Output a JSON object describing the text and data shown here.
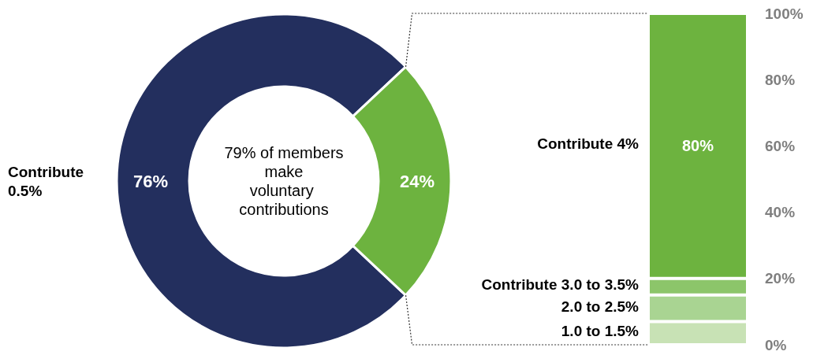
{
  "chart_data": [
    {
      "type": "donut",
      "categories": [
        "Contribute 0.5%",
        null
      ],
      "values": [
        76,
        24
      ],
      "colors": [
        "#232f5e",
        "#6db33f"
      ],
      "value_labels": [
        "76%",
        "24%"
      ],
      "annotations": [
        "79% of members make voluntary contributions"
      ]
    },
    {
      "type": "bar",
      "stacked": true,
      "categories": [
        null
      ],
      "series": [
        {
          "name": "1.0 to 1.5%",
          "color": "#c8e2b5",
          "values": [
            7
          ]
        },
        {
          "name": "2.0 to 2.5%",
          "color": "#a9d492",
          "values": [
            8
          ]
        },
        {
          "name": "Contribute 3.0 to 3.5%",
          "color": "#8cc56a",
          "values": [
            5
          ]
        },
        {
          "name": "Contribute 4%",
          "color": "#6db33f",
          "values": [
            80
          ],
          "value_labels": [
            "80%"
          ]
        }
      ],
      "ylim": [
        0,
        100
      ],
      "yticks": [
        {
          "value": 0,
          "label": "0%"
        },
        {
          "value": 20,
          "label": "20%"
        },
        {
          "value": 40,
          "label": "40%"
        },
        {
          "value": 60,
          "label": "60%"
        },
        {
          "value": 80,
          "label": "80%"
        },
        {
          "value": 100,
          "label": "100%"
        }
      ],
      "tick_labels": "y",
      "grid": false,
      "legend": false
    }
  ]
}
